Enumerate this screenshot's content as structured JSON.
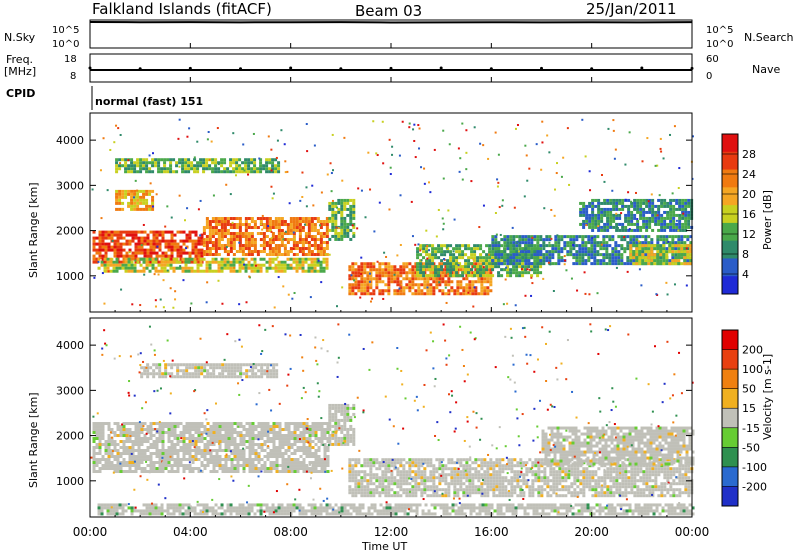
{
  "header": {
    "station": "Falkland Islands (fitACF)",
    "beam": "Beam 03",
    "date": "25/Jan/2011"
  },
  "left_labels": {
    "nsky": "N.Sky",
    "freq": "Freq.",
    "freq_unit": "[MHz]",
    "cpid": "CPID"
  },
  "right_labels": {
    "nsearch": "N.Search",
    "nave": "Nave"
  },
  "cpid_value": "normal (fast) 151",
  "time_axis": {
    "label": "Time UT",
    "ticks": [
      "00:00",
      "04:00",
      "08:00",
      "12:00",
      "16:00",
      "20:00",
      "00:00"
    ]
  },
  "colors": {
    "power": [
      "#1f2ad6",
      "#2a5cc8",
      "#2f8a6a",
      "#4aa84a",
      "#c8d020",
      "#f5a623",
      "#f07a10",
      "#e83a10",
      "#e01010"
    ],
    "velocity": [
      "#2030c8",
      "#2a6ad0",
      "#2f9050",
      "#66cc33",
      "#c0c0b8",
      "#f0b020",
      "#f08010",
      "#e84010",
      "#e00000"
    ],
    "grey": "#c8c8c0"
  },
  "chart_data": [
    {
      "type": "line",
      "title": "N.Sky / N.Search",
      "y_ticks_left": [
        "10^5",
        "10^0"
      ],
      "y_ticks_right": [
        "10^5",
        "10^0"
      ],
      "x": [
        0,
        2,
        4,
        6,
        8,
        10,
        12,
        14,
        16,
        18,
        20,
        22,
        24
      ],
      "series": [
        {
          "values": [
            100000,
            90000,
            95000,
            85000,
            90000,
            95000,
            80000,
            85000,
            90000,
            85000,
            90000,
            85000,
            95000
          ]
        }
      ]
    },
    {
      "type": "scatter",
      "title": "Freq. / Nave",
      "y_ticks_left": [
        "18",
        "8"
      ],
      "y_ticks_right": [
        "60",
        "0"
      ],
      "x": [
        0,
        2,
        4,
        6,
        8,
        10,
        12,
        14,
        16,
        18,
        20,
        22,
        24
      ],
      "series": [
        {
          "values": [
            30,
            28,
            29,
            28,
            30,
            28,
            29,
            30,
            28,
            29,
            28,
            30,
            29
          ]
        }
      ]
    },
    {
      "type": "heatmap",
      "ylabel": "Slant Range [km]",
      "xlabel": "Time UT",
      "xlim": [
        0,
        24
      ],
      "ylim": [
        200,
        4600
      ],
      "y_ticks": [
        1000,
        2000,
        3000,
        4000
      ],
      "colorbar_label": "Power [dB]",
      "colorbar_ticks": [
        "28",
        "24",
        "20",
        "16",
        "12",
        "8",
        "4"
      ],
      "regions": [
        {
          "t0": 0.1,
          "t1": 4.5,
          "r0": 1300,
          "r1": 2000,
          "level": 7
        },
        {
          "t0": 4.5,
          "t1": 9.5,
          "r0": 1500,
          "r1": 2300,
          "level": 6
        },
        {
          "t0": 0.3,
          "t1": 9.5,
          "r0": 1100,
          "r1": 1400,
          "level": 4
        },
        {
          "t0": 9.5,
          "t1": 10.5,
          "r0": 1800,
          "r1": 2700,
          "level": 3
        },
        {
          "t0": 10.3,
          "t1": 16.0,
          "r0": 600,
          "r1": 1300,
          "level": 6
        },
        {
          "t0": 13.0,
          "t1": 18.0,
          "r0": 1000,
          "r1": 1700,
          "level": 3
        },
        {
          "t0": 16.0,
          "t1": 24.0,
          "r0": 1300,
          "r1": 1900,
          "level": 2
        },
        {
          "t0": 21.5,
          "t1": 24.0,
          "r0": 1300,
          "r1": 1700,
          "level": 4
        },
        {
          "t0": 19.5,
          "t1": 24.0,
          "r0": 2000,
          "r1": 2700,
          "level": 2
        },
        {
          "t0": 1.0,
          "t1": 7.5,
          "r0": 3300,
          "r1": 3600,
          "level": 3
        },
        {
          "t0": 1.0,
          "t1": 2.5,
          "r0": 2500,
          "r1": 2900,
          "level": 5
        }
      ]
    },
    {
      "type": "heatmap",
      "ylabel": "Slant Range [km]",
      "xlabel": "Time UT",
      "xlim": [
        0,
        24
      ],
      "ylim": [
        200,
        4600
      ],
      "y_ticks": [
        1000,
        2000,
        3000,
        4000
      ],
      "colorbar_label": "Velocity [m s-1]",
      "colorbar_ticks": [
        "200",
        "100",
        "50",
        "15",
        "-15",
        "-50",
        "-100",
        "-200"
      ],
      "regions": [
        {
          "t0": 0.1,
          "t1": 9.5,
          "r0": 1200,
          "r1": 2300,
          "level": 4
        },
        {
          "t0": 9.5,
          "t1": 10.5,
          "r0": 1800,
          "r1": 2700,
          "level": 4
        },
        {
          "t0": 10.3,
          "t1": 24.0,
          "r0": 700,
          "r1": 1500,
          "level": 4
        },
        {
          "t0": 18.0,
          "t1": 24.0,
          "r0": 1400,
          "r1": 2200,
          "level": 4
        },
        {
          "t0": 0.3,
          "t1": 24.0,
          "r0": 300,
          "r1": 500,
          "level": 3
        },
        {
          "t0": 2.0,
          "t1": 7.5,
          "r0": 3300,
          "r1": 3600,
          "level": 4
        }
      ]
    }
  ]
}
